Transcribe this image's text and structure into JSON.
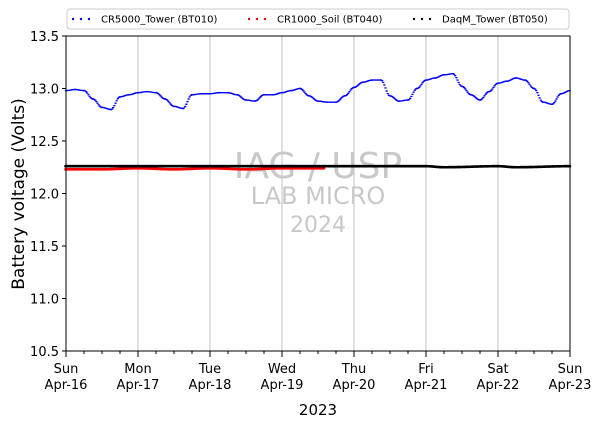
{
  "chart_data": {
    "type": "scatter",
    "xlabel": "2023",
    "ylabel": "Battery voltage (Volts)",
    "ylim": [
      10.5,
      13.5
    ],
    "xlim": [
      "2023-04-16",
      "2023-04-23"
    ],
    "y_ticks": [
      "10.5",
      "11.0",
      "11.5",
      "12.0",
      "12.5",
      "13.0",
      "13.5"
    ],
    "x_ticks": [
      {
        "date": "2023-04-16",
        "day": "Sun",
        "label": "Apr-16"
      },
      {
        "date": "2023-04-17",
        "day": "Mon",
        "label": "Apr-17"
      },
      {
        "date": "2023-04-18",
        "day": "Tue",
        "label": "Apr-18"
      },
      {
        "date": "2023-04-19",
        "day": "Wed",
        "label": "Apr-19"
      },
      {
        "date": "2023-04-20",
        "day": "Thu",
        "label": "Apr-20"
      },
      {
        "date": "2023-04-21",
        "day": "Fri",
        "label": "Apr-21"
      },
      {
        "date": "2023-04-22",
        "day": "Sat",
        "label": "Apr-22"
      },
      {
        "date": "2023-04-23",
        "day": "Sun",
        "label": "Apr-23"
      }
    ],
    "grid": "vertical-major",
    "legend_position": "top",
    "watermark": [
      "IAG / USP",
      "LAB MICRO",
      "2024"
    ],
    "series": [
      {
        "name": "CR5000_Tower (BT010)",
        "color": "#0000ff",
        "points": [
          [
            "2023-04-16 00:00",
            12.98
          ],
          [
            "2023-04-16 03:00",
            12.99
          ],
          [
            "2023-04-16 06:00",
            12.98
          ],
          [
            "2023-04-16 09:00",
            12.9
          ],
          [
            "2023-04-16 12:00",
            12.82
          ],
          [
            "2023-04-16 15:00",
            12.8
          ],
          [
            "2023-04-16 18:00",
            12.92
          ],
          [
            "2023-04-16 21:00",
            12.94
          ],
          [
            "2023-04-17 00:00",
            12.96
          ],
          [
            "2023-04-17 03:00",
            12.97
          ],
          [
            "2023-04-17 06:00",
            12.96
          ],
          [
            "2023-04-17 09:00",
            12.9
          ],
          [
            "2023-04-17 12:00",
            12.83
          ],
          [
            "2023-04-17 15:00",
            12.81
          ],
          [
            "2023-04-17 18:00",
            12.94
          ],
          [
            "2023-04-17 21:00",
            12.95
          ],
          [
            "2023-04-18 00:00",
            12.95
          ],
          [
            "2023-04-18 03:00",
            12.96
          ],
          [
            "2023-04-18 06:00",
            12.96
          ],
          [
            "2023-04-18 09:00",
            12.94
          ],
          [
            "2023-04-18 12:00",
            12.89
          ],
          [
            "2023-04-18 15:00",
            12.88
          ],
          [
            "2023-04-18 18:00",
            12.94
          ],
          [
            "2023-04-18 21:00",
            12.94
          ],
          [
            "2023-04-19 00:00",
            12.96
          ],
          [
            "2023-04-19 03:00",
            12.98
          ],
          [
            "2023-04-19 06:00",
            13.0
          ],
          [
            "2023-04-19 09:00",
            12.93
          ],
          [
            "2023-04-19 12:00",
            12.88
          ],
          [
            "2023-04-19 15:00",
            12.87
          ],
          [
            "2023-04-19 18:00",
            12.87
          ],
          [
            "2023-04-19 21:00",
            12.93
          ],
          [
            "2023-04-20 00:00",
            13.01
          ],
          [
            "2023-04-20 03:00",
            13.06
          ],
          [
            "2023-04-20 06:00",
            13.08
          ],
          [
            "2023-04-20 09:00",
            13.08
          ],
          [
            "2023-04-20 12:00",
            12.93
          ],
          [
            "2023-04-20 15:00",
            12.88
          ],
          [
            "2023-04-20 18:00",
            12.89
          ],
          [
            "2023-04-20 21:00",
            13.0
          ],
          [
            "2023-04-21 00:00",
            13.08
          ],
          [
            "2023-04-21 03:00",
            13.1
          ],
          [
            "2023-04-21 06:00",
            13.13
          ],
          [
            "2023-04-21 09:00",
            13.14
          ],
          [
            "2023-04-21 12:00",
            13.02
          ],
          [
            "2023-04-21 15:00",
            12.94
          ],
          [
            "2023-04-21 18:00",
            12.89
          ],
          [
            "2023-04-21 21:00",
            12.97
          ],
          [
            "2023-04-22 00:00",
            13.05
          ],
          [
            "2023-04-22 03:00",
            13.07
          ],
          [
            "2023-04-22 06:00",
            13.1
          ],
          [
            "2023-04-22 09:00",
            13.08
          ],
          [
            "2023-04-22 12:00",
            13.0
          ],
          [
            "2023-04-22 15:00",
            12.87
          ],
          [
            "2023-04-22 18:00",
            12.85
          ],
          [
            "2023-04-22 21:00",
            12.95
          ],
          [
            "2023-04-23 00:00",
            12.98
          ]
        ]
      },
      {
        "name": "CR1000_Soil (BT040)",
        "color": "#ff0000",
        "points": [
          [
            "2023-04-16 00:00",
            12.23
          ],
          [
            "2023-04-16 12:00",
            12.23
          ],
          [
            "2023-04-17 00:00",
            12.24
          ],
          [
            "2023-04-17 12:00",
            12.23
          ],
          [
            "2023-04-18 00:00",
            12.24
          ],
          [
            "2023-04-18 12:00",
            12.23
          ],
          [
            "2023-04-19 00:00",
            12.24
          ],
          [
            "2023-04-19 14:00",
            12.24
          ]
        ]
      },
      {
        "name": "DaqM_Tower (BT050)",
        "color": "#000000",
        "points": [
          [
            "2023-04-16 00:00",
            12.26
          ],
          [
            "2023-04-17 00:00",
            12.26
          ],
          [
            "2023-04-18 00:00",
            12.26
          ],
          [
            "2023-04-19 00:00",
            12.26
          ],
          [
            "2023-04-20 00:00",
            12.26
          ],
          [
            "2023-04-21 00:00",
            12.26
          ],
          [
            "2023-04-21 06:00",
            12.25
          ],
          [
            "2023-04-22 00:00",
            12.26
          ],
          [
            "2023-04-22 06:00",
            12.25
          ],
          [
            "2023-04-23 00:00",
            12.26
          ]
        ]
      }
    ]
  }
}
